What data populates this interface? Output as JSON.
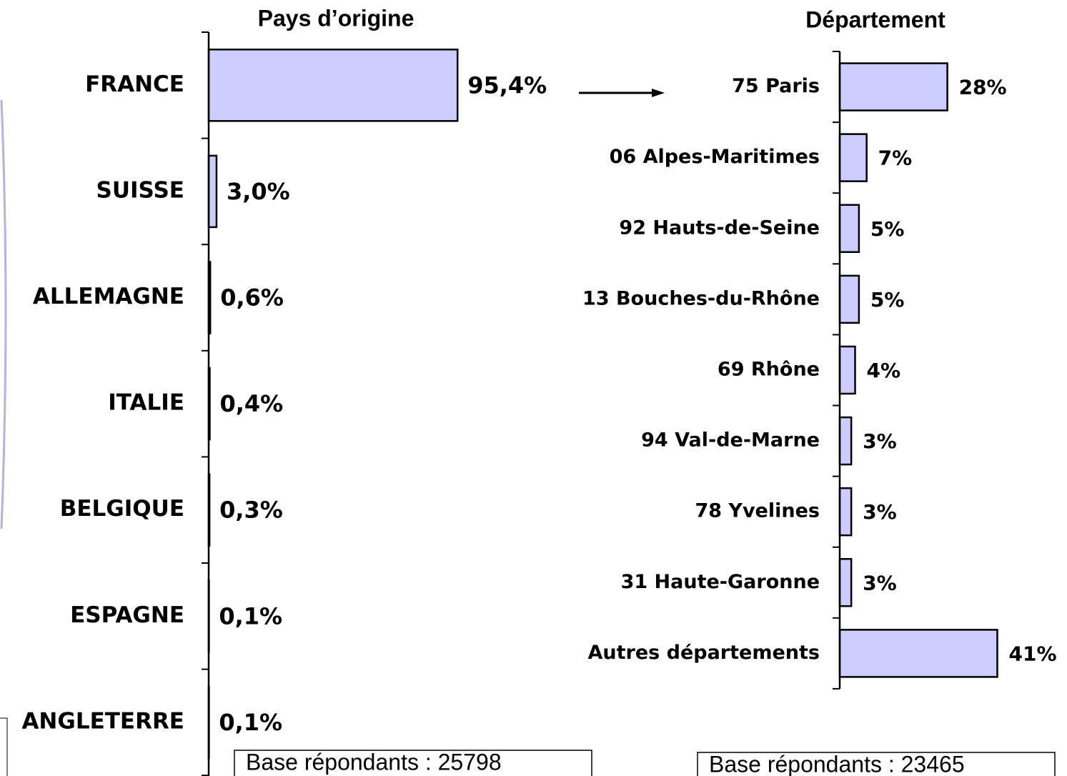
{
  "chart_data": [
    {
      "type": "hbar",
      "title": "Pays d’origine",
      "categories": [
        "FRANCE",
        "SUISSE",
        "ALLEMAGNE",
        "ITALIE",
        "BELGIQUE",
        "ESPAGNE",
        "ANGLETERRE"
      ],
      "values": [
        95.4,
        3.0,
        0.6,
        0.4,
        0.3,
        0.1,
        0.1
      ],
      "value_labels": [
        "95,4%",
        "3,0%",
        "0,6%",
        "0,4%",
        "0,3%",
        "0,1%",
        "0,1%"
      ],
      "color": "#ccccff",
      "xlim": [
        0,
        100
      ],
      "note": "Base répondants : 25798"
    },
    {
      "type": "hbar",
      "title": "Département",
      "categories": [
        "75 Paris",
        "06 Alpes-Maritimes",
        "92 Hauts-de-Seine",
        "13 Bouches-du-Rhône",
        "69 Rhône",
        "94 Val-de-Marne",
        "78 Yvelines",
        "31 Haute-Garonne",
        "Autres départements"
      ],
      "values": [
        28,
        7,
        5,
        5,
        4,
        3,
        3,
        3,
        41
      ],
      "value_labels": [
        "28%",
        "7%",
        "5%",
        "5%",
        "4%",
        "3%",
        "3%",
        "3%",
        "41%"
      ],
      "color": "#ccccff",
      "xlim": [
        0,
        45
      ],
      "note": "Base répondants : 23465"
    }
  ]
}
